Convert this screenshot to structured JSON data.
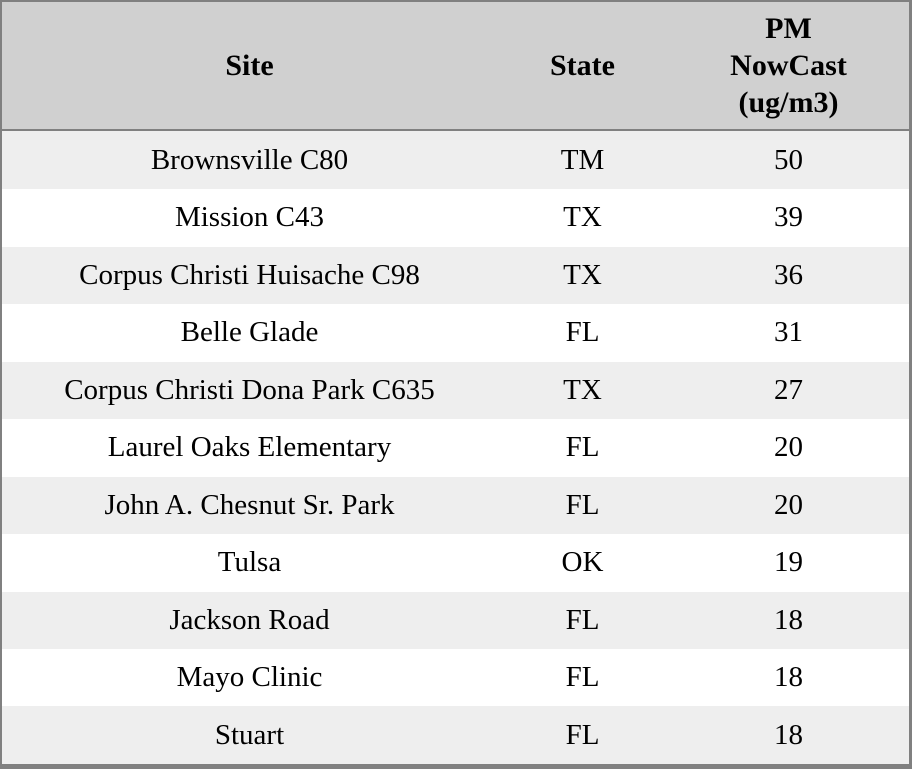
{
  "table": {
    "headers": {
      "site": "Site",
      "state": "State",
      "pm_label": "PM NowCast (ug/m3)",
      "pm_lines": [
        "PM",
        "NowCast",
        "(ug/m3)"
      ]
    },
    "rows": [
      {
        "site": "Brownsville C80",
        "state": "TM",
        "pm_nowcast": "50"
      },
      {
        "site": "Mission C43",
        "state": "TX",
        "pm_nowcast": "39"
      },
      {
        "site": "Corpus Christi Huisache C98",
        "state": "TX",
        "pm_nowcast": "36"
      },
      {
        "site": "Belle Glade",
        "state": "FL",
        "pm_nowcast": "31"
      },
      {
        "site": "Corpus Christi Dona Park C635",
        "state": "TX",
        "pm_nowcast": "27"
      },
      {
        "site": "Laurel Oaks Elementary",
        "state": "FL",
        "pm_nowcast": "20"
      },
      {
        "site": "John A. Chesnut Sr. Park",
        "state": "FL",
        "pm_nowcast": "20"
      },
      {
        "site": "Tulsa",
        "state": "OK",
        "pm_nowcast": "19"
      },
      {
        "site": "Jackson Road",
        "state": "FL",
        "pm_nowcast": "18"
      },
      {
        "site": "Mayo Clinic",
        "state": "FL",
        "pm_nowcast": "18"
      },
      {
        "site": "Stuart",
        "state": "FL",
        "pm_nowcast": "18"
      }
    ],
    "colors": {
      "header_bg": "#d0d0d0",
      "stripe_bg": "#eeeeee",
      "row_bg": "#ffffff",
      "border": "#808080",
      "text": "#000000"
    }
  }
}
